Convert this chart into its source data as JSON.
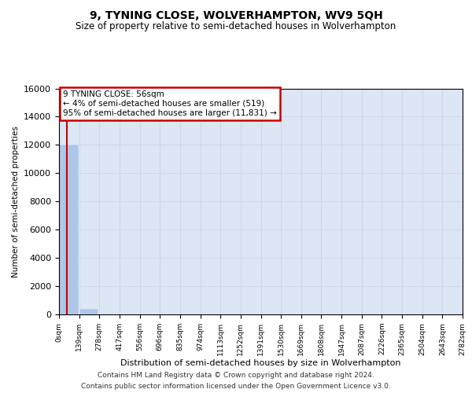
{
  "title": "9, TYNING CLOSE, WOLVERHAMPTON, WV9 5QH",
  "subtitle": "Size of property relative to semi-detached houses in Wolverhampton",
  "xlabel": "Distribution of semi-detached houses by size in Wolverhampton",
  "ylabel": "Number of semi-detached properties",
  "property_size": 56,
  "annotation_line1": "9 TYNING CLOSE: 56sqm",
  "annotation_line2": "← 4% of semi-detached houses are smaller (519)",
  "annotation_line3": "95% of semi-detached houses are larger (11,831) →",
  "bin_edges": [
    0,
    139,
    278,
    417,
    556,
    696,
    835,
    974,
    1113,
    1252,
    1391,
    1530,
    1669,
    1808,
    1947,
    2087,
    2226,
    2365,
    2504,
    2643,
    2782
  ],
  "bin_labels": [
    "0sqm",
    "139sqm",
    "278sqm",
    "417sqm",
    "556sqm",
    "696sqm",
    "835sqm",
    "974sqm",
    "1113sqm",
    "1252sqm",
    "1391sqm",
    "1530sqm",
    "1669sqm",
    "1808sqm",
    "1947sqm",
    "2087sqm",
    "2226sqm",
    "2365sqm",
    "2504sqm",
    "2643sqm",
    "2782sqm"
  ],
  "bar_values": [
    12000,
    400,
    5,
    2,
    1,
    1,
    0,
    0,
    0,
    0,
    0,
    0,
    0,
    0,
    0,
    0,
    0,
    0,
    0,
    0
  ],
  "bar_color": "#aec6e8",
  "red_line_x": 56,
  "ylim": [
    0,
    16000
  ],
  "yticks": [
    0,
    2000,
    4000,
    6000,
    8000,
    10000,
    12000,
    14000,
    16000
  ],
  "grid_color": "#d0d8e8",
  "bg_color": "#dce6f5",
  "annotation_box_color": "#ffffff",
  "annotation_box_edge": "#cc0000",
  "red_line_color": "#cc0000",
  "footer_line1": "Contains HM Land Registry data © Crown copyright and database right 2024.",
  "footer_line2": "Contains public sector information licensed under the Open Government Licence v3.0."
}
